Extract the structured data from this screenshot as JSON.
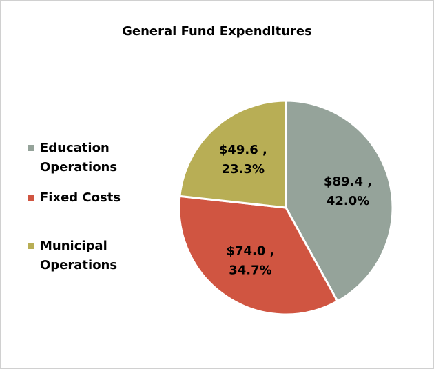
{
  "chart_data": {
    "type": "pie",
    "title": "General Fund Expenditures",
    "categories": [
      "Education Operations",
      "Fixed Costs",
      "Municipal Operations"
    ],
    "values": [
      89.4,
      74.0,
      49.6
    ],
    "value_labels": [
      "$89.4 ,",
      "$74.0 ,",
      "$49.6 ,"
    ],
    "percents": [
      {
        "value": 42.0,
        "label": "42.0%"
      },
      {
        "value": 34.7,
        "label": "34.7%"
      },
      {
        "value": 23.3,
        "label": "23.3%"
      }
    ],
    "colors": [
      "#95a39a",
      "#d05541",
      "#b8ae55"
    ],
    "legend": "left"
  }
}
